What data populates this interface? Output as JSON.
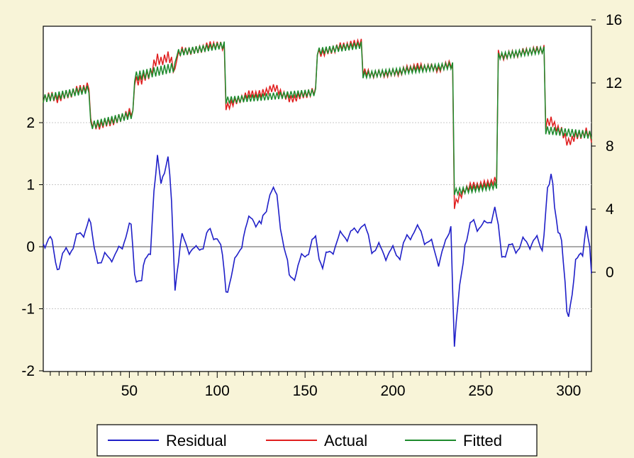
{
  "chart_data": {
    "type": "line",
    "title": "",
    "xlabel": "",
    "ylabel_left": "",
    "ylabel_right": "",
    "xlim": [
      1,
      313
    ],
    "ylim_left": [
      -2,
      4
    ],
    "ylim_right": [
      -3,
      16
    ],
    "x_ticks": [
      50,
      100,
      150,
      200,
      250,
      300
    ],
    "y_left_ticks": [
      -2,
      -1,
      0,
      1,
      2
    ],
    "y_right_ticks": [
      0,
      4,
      8,
      12,
      16
    ],
    "grid": "horizontal-left-axis",
    "legend_position": "bottom",
    "colors": {
      "background": "#f8f4d8",
      "plot_area": "#ffffff",
      "residual": "#1f1fc8",
      "actual": "#e01e1e",
      "fitted": "#1d8a2c"
    },
    "segments": [
      {
        "from": 1,
        "to": 27,
        "level": 11.0,
        "slope": 0.6,
        "osc": 0.25
      },
      {
        "from": 28,
        "to": 52,
        "level": 9.3,
        "slope": 0.7,
        "osc": 0.25
      },
      {
        "from": 53,
        "to": 76,
        "level": 12.4,
        "slope": 0.6,
        "osc": 0.3
      },
      {
        "from": 77,
        "to": 104,
        "level": 13.9,
        "slope": 0.5,
        "osc": 0.22
      },
      {
        "from": 105,
        "to": 156,
        "level": 10.9,
        "slope": 0.5,
        "osc": 0.22
      },
      {
        "from": 157,
        "to": 182,
        "level": 14.0,
        "slope": 0.4,
        "osc": 0.22
      },
      {
        "from": 183,
        "to": 234,
        "level": 12.5,
        "slope": 0.6,
        "osc": 0.2
      },
      {
        "from": 235,
        "to": 259,
        "level": 5.1,
        "slope": 0.4,
        "osc": 0.2
      },
      {
        "from": 260,
        "to": 286,
        "level": 13.7,
        "slope": 0.4,
        "osc": 0.2
      },
      {
        "from": 287,
        "to": 313,
        "level": 9.0,
        "slope": -0.3,
        "osc": 0.25
      }
    ],
    "residual_keypoints": [
      [
        1,
        0.1
      ],
      [
        5,
        0.1
      ],
      [
        9,
        -0.3
      ],
      [
        14,
        -0.1
      ],
      [
        20,
        0.1
      ],
      [
        27,
        0.4
      ],
      [
        30,
        0.0
      ],
      [
        34,
        -0.3
      ],
      [
        38,
        -0.1
      ],
      [
        42,
        -0.2
      ],
      [
        48,
        0.2
      ],
      [
        51,
        0.3
      ],
      [
        53,
        -0.4
      ],
      [
        57,
        -0.6
      ],
      [
        62,
        0.3
      ],
      [
        66,
        1.1
      ],
      [
        70,
        1.5
      ],
      [
        73,
        0.9
      ],
      [
        76,
        -0.3
      ],
      [
        80,
        0.1
      ],
      [
        88,
        -0.1
      ],
      [
        95,
        0.2
      ],
      [
        100,
        0.2
      ],
      [
        103,
        -0.2
      ],
      [
        105,
        -0.7
      ],
      [
        110,
        -0.3
      ],
      [
        115,
        0.2
      ],
      [
        120,
        0.5
      ],
      [
        125,
        0.3
      ],
      [
        130,
        0.9
      ],
      [
        134,
        0.8
      ],
      [
        138,
        0.0
      ],
      [
        141,
        -0.5
      ],
      [
        145,
        -0.4
      ],
      [
        150,
        -0.1
      ],
      [
        156,
        0.1
      ],
      [
        160,
        -0.3
      ],
      [
        166,
        0.0
      ],
      [
        172,
        0.2
      ],
      [
        178,
        0.2
      ],
      [
        182,
        0.4
      ],
      [
        188,
        0.0
      ],
      [
        196,
        -0.1
      ],
      [
        204,
        -0.1
      ],
      [
        212,
        0.3
      ],
      [
        220,
        0.1
      ],
      [
        226,
        -0.2
      ],
      [
        230,
        0.0
      ],
      [
        233,
        0.4
      ],
      [
        235,
        -1.6
      ],
      [
        238,
        -0.7
      ],
      [
        241,
        0.1
      ],
      [
        246,
        0.4
      ],
      [
        252,
        0.3
      ],
      [
        258,
        0.6
      ],
      [
        262,
        -0.1
      ],
      [
        270,
        0.0
      ],
      [
        280,
        0.1
      ],
      [
        285,
        0.0
      ],
      [
        288,
        0.9
      ],
      [
        291,
        1.0
      ],
      [
        295,
        0.2
      ],
      [
        299,
        -1.0
      ],
      [
        303,
        -0.6
      ],
      [
        307,
        0.0
      ],
      [
        310,
        0.3
      ],
      [
        313,
        -0.5
      ]
    ],
    "series": [
      {
        "name": "Residual",
        "axis": "left",
        "color": "#1f1fc8"
      },
      {
        "name": "Actual",
        "axis": "right",
        "color": "#e01e1e"
      },
      {
        "name": "Fitted",
        "axis": "right",
        "color": "#1d8a2c"
      }
    ]
  }
}
